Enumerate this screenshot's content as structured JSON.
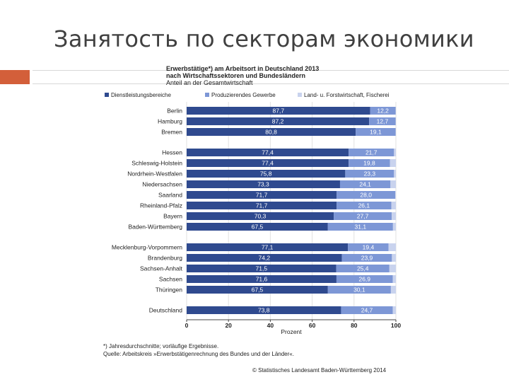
{
  "slide": {
    "title": "Занятость по секторам экономики"
  },
  "colors": {
    "accent": "#d35f3a",
    "services": "#2f4a8f",
    "production": "#7d97d6",
    "agriculture": "#c9d3ee"
  },
  "chart_data": {
    "type": "bar",
    "orientation": "horizontal",
    "stacked": true,
    "title": "Erwerbstätige*) am Arbeitsort in Deutschland 2013",
    "title_line2": "nach Wirtschaftssektoren und Bundesländern",
    "subtitle": "Anteil an der Gesamtwirtschaft",
    "xlabel": "Prozent",
    "xlim": [
      0,
      100
    ],
    "xticks": [
      0,
      20,
      40,
      60,
      80,
      100
    ],
    "categories": [
      "Berlin",
      "Hamburg",
      "Bremen",
      "Hessen",
      "Schleswig-Holstein",
      "Nordrhein-Westfalen",
      "Niedersachsen",
      "Saarland",
      "Rheinland-Pfalz",
      "Bayern",
      "Baden-Württemberg",
      "Mecklenburg-Vorpommern",
      "Brandenburg",
      "Sachsen-Anhalt",
      "Sachsen",
      "Thüringen",
      "Deutschland"
    ],
    "groups": [
      0,
      0,
      0,
      1,
      1,
      1,
      1,
      1,
      1,
      1,
      1,
      2,
      2,
      2,
      2,
      2,
      3
    ],
    "series": [
      {
        "name": "Dienstleistungsbereiche",
        "values": [
          87.7,
          87.2,
          80.8,
          77.4,
          77.4,
          75.8,
          73.3,
          71.7,
          71.7,
          70.3,
          67.5,
          77.1,
          74.2,
          71.5,
          71.6,
          67.5,
          73.8
        ],
        "labels": [
          "87,7",
          "87,2",
          "80,8",
          "77,4",
          "77,4",
          "75,8",
          "73,3",
          "71,7",
          "71,7",
          "70,3",
          "67,5",
          "77,1",
          "74,2",
          "71,5",
          "71,6",
          "67,5",
          "73,8"
        ]
      },
      {
        "name": "Produzierendes Gewerbe",
        "values": [
          12.2,
          12.7,
          19.1,
          21.7,
          19.8,
          23.3,
          24.1,
          28.0,
          26.1,
          27.7,
          31.1,
          19.4,
          23.9,
          25.4,
          26.9,
          30.1,
          24.7
        ],
        "labels": [
          "12,2",
          "12,7",
          "19,1",
          "21,7",
          "19,8",
          "23,3",
          "24,1",
          "28,0",
          "26,1",
          "27,7",
          "31,1",
          "19,4",
          "23,9",
          "25,4",
          "26,9",
          "30,1",
          "24,7"
        ]
      },
      {
        "name": "Land- u. Forstwirtschaft, Fischerei",
        "values": [
          0.1,
          0.1,
          0.1,
          0.9,
          2.8,
          0.9,
          2.6,
          0.3,
          2.2,
          2.0,
          1.4,
          3.5,
          1.9,
          3.1,
          1.5,
          2.4,
          1.5
        ],
        "labels": [
          "",
          "",
          "",
          "",
          "",
          "",
          "",
          "",
          "",
          "",
          "",
          "",
          "",
          "",
          "",
          "",
          ""
        ]
      }
    ],
    "footnote1": "*) Jahresdurchschnitte; vorläufige Ergebnisse.",
    "footnote2": "Quelle: Arbeitskreis »Erwerbstätigenrechnung des Bundes und der Länder«.",
    "credit": "© Statistisches Landesamt Baden-Württemberg 2014"
  }
}
